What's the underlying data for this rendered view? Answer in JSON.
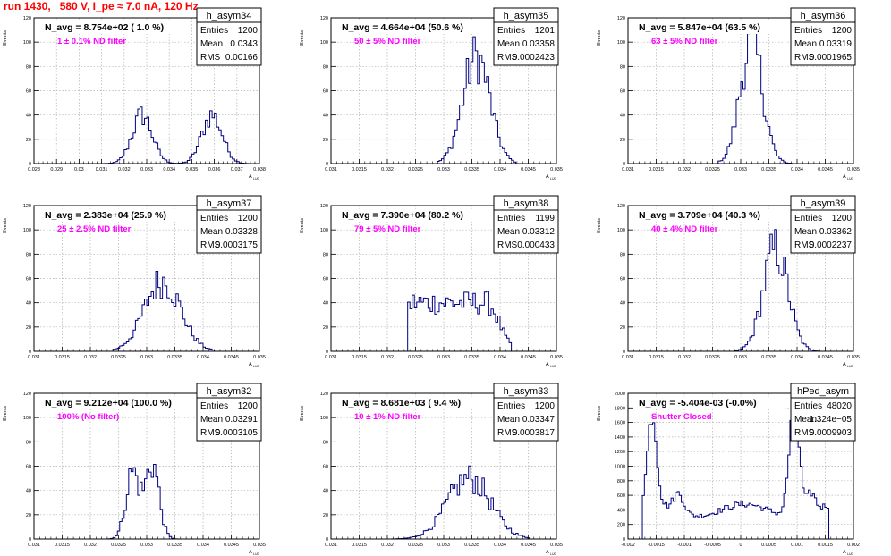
{
  "run_title": "run 1430,   580 V, I_pe ≈ 7.0 nA, 120 Hz",
  "colors": {
    "hist_line": "#000080",
    "frame": "#000000",
    "grid": "#b0b0b0",
    "title_red": "#ff0000",
    "annot_magenta": "#ff00ff"
  },
  "chart_data": [
    {
      "type": "histogram",
      "name": "h_asym34",
      "navg": "N_avg = 8.754e+02 ( 1.0 %)",
      "annot": "1 ± 0.1% ND filter",
      "stats": {
        "Entries": "1200",
        "Mean": "0.0343",
        "RMS": "0.00166"
      },
      "ylabel": "Events",
      "xlabel": "A",
      "xlim": [
        0.028,
        0.038
      ],
      "ylim": [
        0,
        120
      ],
      "xticks": [
        0.028,
        0.029,
        0.03,
        0.031,
        0.032,
        0.033,
        0.034,
        0.035,
        0.036,
        0.037,
        0.038
      ],
      "xticklabels": [
        "0.028",
        "0.029",
        "0.03",
        "0.031",
        "0.032",
        "0.033",
        "0.034",
        "0.035",
        "0.036",
        "0.037",
        "0.038"
      ],
      "yticks": [
        0,
        20,
        40,
        60,
        80,
        100,
        120
      ],
      "peaks": [
        {
          "mu": 0.0328,
          "sigma": 0.00045,
          "amp": 40
        },
        {
          "mu": 0.0359,
          "sigma": 0.00045,
          "amp": 40
        }
      ],
      "hrange": [
        0.0308,
        0.0376
      ]
    },
    {
      "type": "histogram",
      "name": "h_asym35",
      "navg": "N_avg = 4.664e+04 (50.6 %)",
      "annot": "50 ± 5% ND filter",
      "stats": {
        "Entries": "1201",
        "Mean": "0.03358",
        "RMS": "0.0002423"
      },
      "ylabel": "Events",
      "xlabel": "A",
      "xlim": [
        0.031,
        0.035
      ],
      "ylim": [
        0,
        120
      ],
      "xticks": [
        0.031,
        0.0315,
        0.032,
        0.0325,
        0.033,
        0.0335,
        0.034,
        0.0345,
        0.035
      ],
      "xticklabels": [
        "0.031",
        "0.0315",
        "0.032",
        "0.0325",
        "0.033",
        "0.0335",
        "0.034",
        "0.0345",
        "0.035"
      ],
      "yticks": [
        0,
        20,
        40,
        60,
        80,
        100,
        120
      ],
      "peaks": [
        {
          "mu": 0.03358,
          "sigma": 0.00024,
          "amp": 88
        }
      ],
      "hrange": [
        0.0329,
        0.0343
      ]
    },
    {
      "type": "histogram",
      "name": "h_asym36",
      "navg": "N_avg = 5.847e+04 (63.5 %)",
      "annot": "63 ± 5% ND filter",
      "stats": {
        "Entries": "1200",
        "Mean": "0.03319",
        "RMS": "0.0001965"
      },
      "ylabel": "Events",
      "xlabel": "A",
      "xlim": [
        0.031,
        0.035
      ],
      "ylim": [
        0,
        120
      ],
      "xticks": [
        0.031,
        0.0315,
        0.032,
        0.0325,
        0.033,
        0.0335,
        0.034,
        0.0345,
        0.035
      ],
      "xticklabels": [
        "0.031",
        "0.0315",
        "0.032",
        "0.0325",
        "0.033",
        "0.0335",
        "0.034",
        "0.0345",
        "0.035"
      ],
      "yticks": [
        0,
        20,
        40,
        60,
        80,
        100,
        120
      ],
      "peaks": [
        {
          "mu": 0.03319,
          "sigma": 0.0002,
          "amp": 100
        }
      ],
      "hrange": [
        0.0326,
        0.0339
      ]
    },
    {
      "type": "histogram",
      "name": "h_asym37",
      "navg": "N_avg = 2.383e+04 (25.9 %)",
      "annot": "25 ± 2.5% ND filter",
      "stats": {
        "Entries": "1200",
        "Mean": "0.03328",
        "RMS": "0.0003175"
      },
      "ylabel": "Events",
      "xlabel": "A",
      "xlim": [
        0.031,
        0.035
      ],
      "ylim": [
        0,
        120
      ],
      "xticks": [
        0.031,
        0.0315,
        0.032,
        0.0325,
        0.033,
        0.0335,
        0.034,
        0.0345,
        0.035
      ],
      "xticklabels": [
        "0.031",
        "0.0315",
        "0.032",
        "0.0325",
        "0.033",
        "0.0335",
        "0.034",
        "0.0345",
        "0.035"
      ],
      "yticks": [
        0,
        20,
        40,
        60,
        80,
        100,
        120
      ],
      "peaks": [
        {
          "mu": 0.03328,
          "sigma": 0.00032,
          "amp": 58
        }
      ],
      "hrange": [
        0.0324,
        0.0342
      ]
    },
    {
      "type": "histogram",
      "name": "h_asym38",
      "navg": "N_avg = 7.390e+04 (80.2 %)",
      "annot": "79 ± 5% ND filter",
      "stats": {
        "Entries": "1199",
        "Mean": "0.03312",
        "RMS": "0.000433"
      },
      "ylabel": "Events",
      "xlabel": "A",
      "xlim": [
        0.031,
        0.035
      ],
      "ylim": [
        0,
        120
      ],
      "xticks": [
        0.031,
        0.0315,
        0.032,
        0.0325,
        0.033,
        0.0335,
        0.034,
        0.0345,
        0.035
      ],
      "xticklabels": [
        "0.031",
        "0.0315",
        "0.032",
        "0.0325",
        "0.033",
        "0.0335",
        "0.034",
        "0.0345",
        "0.035"
      ],
      "yticks": [
        0,
        20,
        40,
        60,
        80,
        100,
        120
      ],
      "peaks": [
        {
          "mu": 0.03312,
          "sigma": 0.00043,
          "amp": 40,
          "flat": true
        }
      ],
      "hrange": [
        0.03235,
        0.0342
      ]
    },
    {
      "type": "histogram",
      "name": "h_asym39",
      "navg": "N_avg = 3.709e+04 (40.3 %)",
      "annot": "40 ± 4% ND filter",
      "stats": {
        "Entries": "1200",
        "Mean": "0.03362",
        "RMS": "0.0002237"
      },
      "ylabel": "Events",
      "xlabel": "A",
      "xlim": [
        0.031,
        0.035
      ],
      "ylim": [
        0,
        120
      ],
      "xticks": [
        0.031,
        0.0315,
        0.032,
        0.0325,
        0.033,
        0.0335,
        0.034,
        0.0345,
        0.035
      ],
      "xticklabels": [
        "0.031",
        "0.0315",
        "0.032",
        "0.0325",
        "0.033",
        "0.0335",
        "0.034",
        "0.0345",
        "0.035"
      ],
      "yticks": [
        0,
        20,
        40,
        60,
        80,
        100,
        120
      ],
      "peaks": [
        {
          "mu": 0.03362,
          "sigma": 0.00022,
          "amp": 84
        }
      ],
      "hrange": [
        0.0329,
        0.0344
      ]
    },
    {
      "type": "histogram",
      "name": "h_asym32",
      "navg": "N_avg = 9.212e+04 (100.0 %)",
      "annot": "100% (No filter)",
      "stats": {
        "Entries": "1200",
        "Mean": "0.03291",
        "RMS": "0.0003105"
      },
      "ylabel": "Events",
      "xlabel": "A",
      "xlim": [
        0.031,
        0.035
      ],
      "ylim": [
        0,
        120
      ],
      "xticks": [
        0.031,
        0.0315,
        0.032,
        0.0325,
        0.033,
        0.0335,
        0.034,
        0.0345,
        0.035
      ],
      "xticklabels": [
        "0.031",
        "0.0315",
        "0.032",
        "0.0325",
        "0.033",
        "0.0335",
        "0.034",
        "0.0345",
        "0.035"
      ],
      "yticks": [
        0,
        20,
        40,
        60,
        80,
        100,
        120
      ],
      "peaks": [
        {
          "mu": 0.03275,
          "sigma": 0.00012,
          "amp": 55
        },
        {
          "mu": 0.0331,
          "sigma": 0.00012,
          "amp": 62
        }
      ],
      "hrange": [
        0.0323,
        0.0336
      ]
    },
    {
      "type": "histogram",
      "name": "h_asym33",
      "navg": "N_avg = 8.681e+03 ( 9.4 %)",
      "annot": "10 ± 1% ND filter",
      "stats": {
        "Entries": "1200",
        "Mean": "0.03347",
        "RMS": "0.0003817"
      },
      "ylabel": "Events",
      "xlabel": "A",
      "xlim": [
        0.031,
        0.035
      ],
      "ylim": [
        0,
        120
      ],
      "xticks": [
        0.031,
        0.0315,
        0.032,
        0.0325,
        0.033,
        0.0335,
        0.034,
        0.0345,
        0.035
      ],
      "xticklabels": [
        "0.031",
        "0.0315",
        "0.032",
        "0.0325",
        "0.033",
        "0.0335",
        "0.034",
        "0.0345",
        "0.035"
      ],
      "yticks": [
        0,
        20,
        40,
        60,
        80,
        100,
        120
      ],
      "peaks": [
        {
          "mu": 0.03345,
          "sigma": 0.00038,
          "amp": 50
        }
      ],
      "hrange": [
        0.0321,
        0.0345
      ]
    },
    {
      "type": "histogram",
      "name": "hPed_asym",
      "navg": "N_avg = -5.404e-03 (-0.0%)",
      "annot": "Shutter Closed",
      "stats": {
        "Entries": "48020",
        "Mean": "1.324e−05",
        "RMS": "0.0009903"
      },
      "ylabel": "Events",
      "xlabel": "A",
      "xlim": [
        -0.002,
        0.002
      ],
      "ylim": [
        0,
        2000
      ],
      "xticks": [
        -0.002,
        -0.0015,
        -0.001,
        -0.0005,
        0,
        0.0005,
        0.001,
        0.0015,
        0.002
      ],
      "xticklabels": [
        "-0.002",
        "-0.0015",
        "-0.001",
        "-0.0005",
        "0",
        "0.0005",
        "0.001",
        "0.0015",
        "0.002"
      ],
      "yticks": [
        0,
        200,
        400,
        600,
        800,
        1000,
        1200,
        1400,
        1600,
        1800,
        2000
      ],
      "pedestal": true,
      "hrange": [
        -0.00175,
        0.00158
      ]
    }
  ]
}
